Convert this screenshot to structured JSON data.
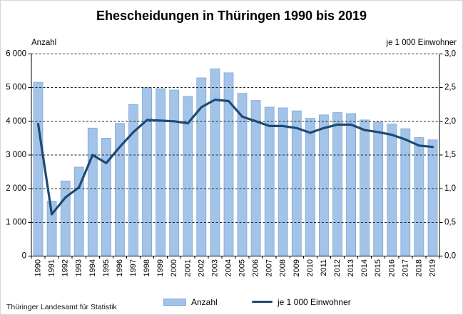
{
  "title": "Ehescheidungen in Thüringen 1990 bis 2019",
  "source": "Thüringer Landesamt für Statistik",
  "chart_data": {
    "type": "combo",
    "title": "Ehescheidungen in Thüringen 1990 bis 2019",
    "categories": [
      "1990",
      "1991",
      "1992",
      "1993",
      "1994",
      "1995",
      "1996",
      "1997",
      "1998",
      "1999",
      "2000",
      "2001",
      "2002",
      "2003",
      "2004",
      "2005",
      "2006",
      "2007",
      "2008",
      "2009",
      "2010",
      "2011",
      "2012",
      "2013",
      "2014",
      "2015",
      "2016",
      "2017",
      "2018",
      "2019"
    ],
    "series": [
      {
        "name": "Anzahl",
        "type": "bar",
        "axis": "left",
        "color": "#A3C4E8",
        "border_color": "#7FA7D8",
        "values": [
          5160,
          1630,
          2230,
          2640,
          3800,
          3500,
          3940,
          4500,
          5000,
          4970,
          4930,
          4740,
          5290,
          5560,
          5440,
          4830,
          4620,
          4420,
          4400,
          4310,
          4090,
          4190,
          4260,
          4230,
          4040,
          3980,
          3920,
          3780,
          3520,
          3450
        ]
      },
      {
        "name": "je 1 000 Einwohner",
        "type": "line",
        "axis": "right",
        "color": "#1F4A73",
        "values": [
          1.96,
          0.62,
          0.87,
          1.02,
          1.5,
          1.38,
          1.62,
          1.84,
          2.02,
          2.01,
          2.0,
          1.97,
          2.21,
          2.32,
          2.3,
          2.07,
          2.0,
          1.93,
          1.93,
          1.9,
          1.83,
          1.9,
          1.95,
          1.95,
          1.87,
          1.84,
          1.8,
          1.73,
          1.64,
          1.62
        ]
      }
    ],
    "left_axis": {
      "label": "Anzahl",
      "min": 0,
      "max": 6000,
      "tick_step": 1000,
      "tick_labels": [
        "0",
        "1 000",
        "2 000",
        "3 000",
        "4 000",
        "5 000",
        "6 000"
      ]
    },
    "right_axis": {
      "label": "je 1 000 Einwohner",
      "min": 0,
      "max": 3,
      "tick_step": 0.5,
      "tick_labels": [
        "0,0",
        "0,5",
        "1,0",
        "1,5",
        "2,0",
        "2,5",
        "3,0"
      ]
    },
    "grid": {
      "horizontal": "dashed",
      "color": "#262626"
    },
    "legend_position": "bottom",
    "axis_color": "#000000"
  }
}
